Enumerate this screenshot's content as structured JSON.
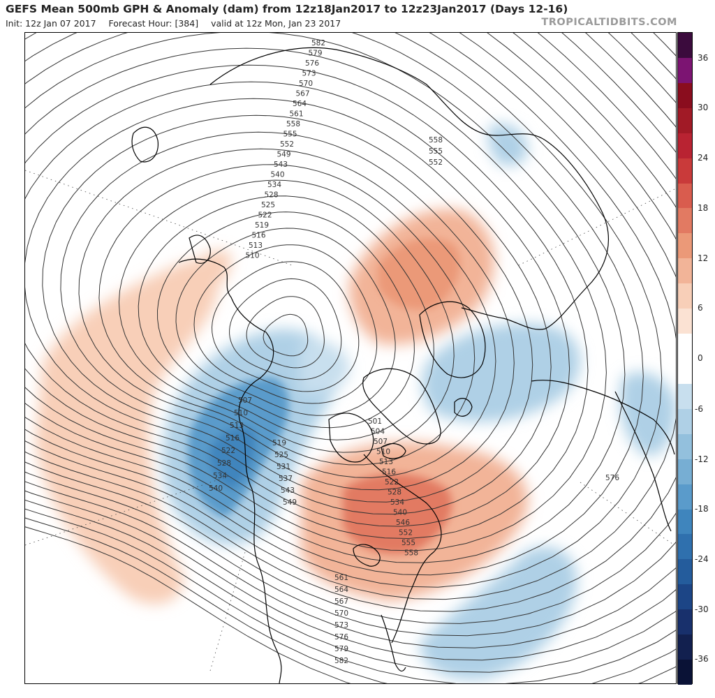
{
  "header": {
    "title": "GEFS Mean 500mb GPH & Anomaly (dam) from 12z18Jan2017 to 12z23Jan2017 (Days 12-16)",
    "init": "Init: 12z Jan 07 2017",
    "forecast_hour": "Forecast Hour: [384]",
    "valid": "valid at 12z Mon, Jan 23 2017",
    "brand": "TROPICALTIDBITS.COM"
  },
  "colorbar": {
    "ticks": [
      "36",
      "30",
      "24",
      "18",
      "12",
      "6",
      "0",
      "-6",
      "-12",
      "-18",
      "-24",
      "-30",
      "-36"
    ],
    "colors": [
      "#3b0b3d",
      "#7c1472",
      "#8a0d1e",
      "#a11a26",
      "#b92332",
      "#c93a3a",
      "#d95c4e",
      "#e27a62",
      "#eb9978",
      "#f2b498",
      "#f8cfb8",
      "#fbe2d3",
      "#ffffff",
      "#ffffff",
      "#c8dfee",
      "#afd0e6",
      "#93c0dd",
      "#77aed3",
      "#5a9bcb",
      "#3f85bd",
      "#2f70ae",
      "#245c9c",
      "#1c4586",
      "#18306c",
      "#12204f",
      "#0a1236"
    ]
  },
  "contour_labels": {
    "top": [
      "582",
      "579",
      "576",
      "573",
      "570",
      "567",
      "564",
      "561",
      "558",
      "555",
      "552",
      "549",
      "543",
      "540",
      "534",
      "528",
      "525",
      "522",
      "519",
      "516",
      "513",
      "510"
    ],
    "europe": [
      "558",
      "555",
      "552"
    ],
    "pacific": [
      "507",
      "510",
      "513",
      "516",
      "522",
      "528",
      "534",
      "540"
    ],
    "west_coast": [
      "519",
      "525",
      "531",
      "537",
      "543",
      "549"
    ],
    "hudson": [
      "501",
      "504",
      "507",
      "510",
      "513",
      "516",
      "522",
      "528",
      "534",
      "540",
      "546",
      "552",
      "555",
      "558"
    ],
    "southeast": [
      "561",
      "564",
      "567",
      "570",
      "573",
      "576",
      "579",
      "582"
    ],
    "atlantic": [
      "576"
    ]
  }
}
